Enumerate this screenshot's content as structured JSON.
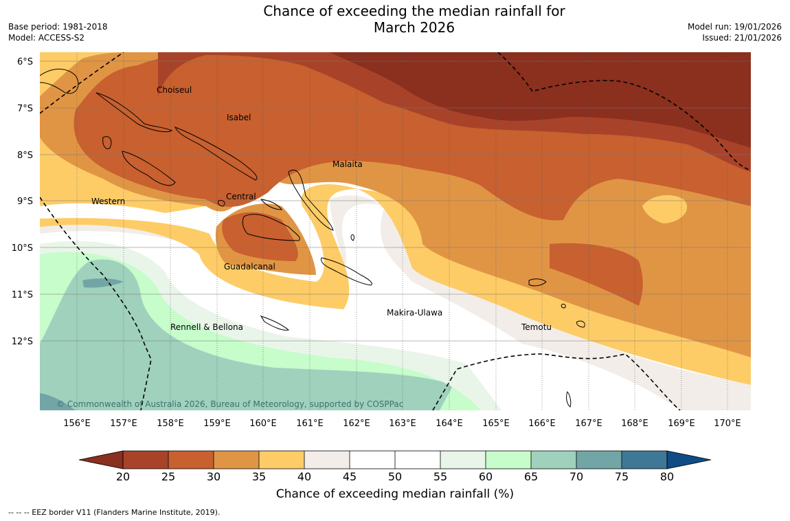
{
  "header": {
    "title_line1": "Chance of exceeding the median rainfall for",
    "title_line2": "March 2026",
    "base_period": "Base period: 1981-2018",
    "model": "Model: ACCESS-S2",
    "model_run": "Model run: 19/01/2026",
    "issued": "Issued: 21/01/2026"
  },
  "map": {
    "lat_labels": [
      "6°S",
      "7°S",
      "8°S",
      "9°S",
      "10°S",
      "11°S",
      "12°S"
    ],
    "lon_labels": [
      "156°E",
      "157°E",
      "158°E",
      "159°E",
      "160°E",
      "161°E",
      "162°E",
      "163°E",
      "164°E",
      "165°E",
      "166°E",
      "167°E",
      "168°E",
      "169°E",
      "170°E"
    ],
    "regions": [
      "Choiseul",
      "Isabel",
      "Malaita",
      "Central",
      "Western",
      "Guadalcanal",
      "Makira-Ulawa",
      "Rennell & Bellona",
      "Temotu"
    ],
    "copyright": "© Commonwealth of Australia 2026, Bureau of Meteorology, supported by COSPPac"
  },
  "colorbar": {
    "title": "Chance of exceeding median rainfall (%)",
    "ticks": [
      "20",
      "25",
      "30",
      "35",
      "40",
      "45",
      "50",
      "55",
      "60",
      "65",
      "70",
      "75",
      "80"
    ],
    "colors": [
      "#a8432a",
      "#c8602f",
      "#e09545",
      "#fdcc67",
      "#f2ede8",
      "#ffffff",
      "#ffffff",
      "#eaf5ea",
      "#c7fccb",
      "#9fd1bd",
      "#72a6a6",
      "#3f7897"
    ],
    "below_color": "#8b2f1e",
    "above_color": "#0f4c86"
  },
  "footnote": "-- -- -- EEZ border V11 (Flanders Marine Institute, 2019)."
}
